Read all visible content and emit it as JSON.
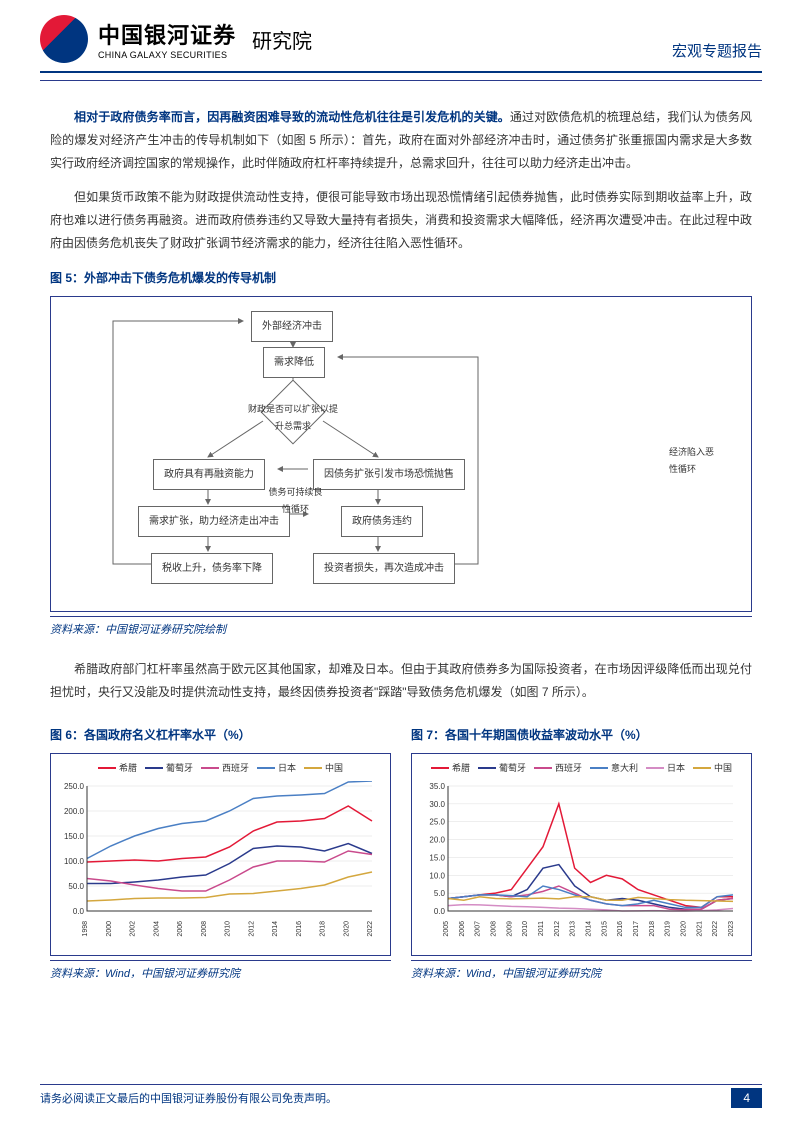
{
  "header": {
    "logoCn": "中国银河证券",
    "logoEn": "CHINA GALAXY SECURITIES",
    "institute": "研究院",
    "reportType": "宏观专题报告"
  },
  "colors": {
    "primary": "#003580",
    "red": "#e31937",
    "text": "#333333",
    "border": "#2a3a8c",
    "grey": "#666666"
  },
  "para1": {
    "lead": "相对于政府债务率而言，因再融资困难导致的流动性危机往往是引发危机的关键。",
    "rest": "通过对欧债危机的梳理总结，我们认为债务风险的爆发对经济产生冲击的传导机制如下（如图 5 所示）：首先，政府在面对外部经济冲击时，通过债务扩张重振国内需求是大多数实行政府经济调控国家的常规操作，此时伴随政府杠杆率持续提升，总需求回升，往往可以助力经济走出冲击。"
  },
  "para2": "但如果货币政策不能为财政提供流动性支持，便很可能导致市场出现恐慌情绪引起债券抛售，此时债券实际到期收益率上升，政府也难以进行债务再融资。进而政府债券违约又导致大量持有者损失，消费和投资需求大幅降低，经济再次遭受冲击。在此过程中政府由因债务危机丧失了财政扩张调节经济需求的能力，经济往往陷入恶性循环。",
  "fig5": {
    "title": "图 5：外部冲击下债务危机爆发的传导机制",
    "source": "资料来源：中国银河证券研究院绘制",
    "nodes": {
      "n1": "外部经济冲击",
      "n2": "需求降低",
      "n3": "财政是否可以扩张以提升总需求",
      "n4a": "政府具有再融资能力",
      "n4b": "因债务扩张引发市场恐慌抛售",
      "n5a": "需求扩张，助力经济走出冲击",
      "n5b": "政府债务违约",
      "n6a": "税收上升，债务率下降",
      "n6b": "投资者损失，再次造成冲击",
      "loopText": "经济陷入恶性循环",
      "sideText": "债务可持续良性循环"
    }
  },
  "para3": "希腊政府部门杠杆率虽然高于欧元区其他国家，却难及日本。但由于其政府债券多为国际投资者，在市场因评级降低而出现兑付担忧时，央行又没能及时提供流动性支持，最终因债券投资者\"踩踏\"导致债务危机爆发（如图 7 所示）。",
  "fig6": {
    "title": "图 6：各国政府名义杠杆率水平（%）",
    "source": "资料来源：Wind，中国银河证券研究院",
    "legend": [
      {
        "name": "希腊",
        "color": "#e31937"
      },
      {
        "name": "葡萄牙",
        "color": "#2a3a8c"
      },
      {
        "name": "西班牙",
        "color": "#c94a8c"
      },
      {
        "name": "日本",
        "color": "#4a7fc4"
      },
      {
        "name": "中国",
        "color": "#d4a73e"
      }
    ],
    "xaxis": [
      "1998",
      "2000",
      "2002",
      "2004",
      "2006",
      "2008",
      "2010",
      "2012",
      "2014",
      "2016",
      "2018",
      "2020",
      "2022"
    ],
    "yaxis": {
      "min": 0,
      "max": 250,
      "step": 50
    },
    "series": {
      "greece": [
        98,
        100,
        102,
        100,
        105,
        108,
        128,
        160,
        178,
        180,
        185,
        210,
        180
      ],
      "portugal": [
        55,
        55,
        58,
        62,
        68,
        72,
        95,
        125,
        130,
        128,
        120,
        135,
        115
      ],
      "spain": [
        65,
        60,
        52,
        45,
        40,
        40,
        62,
        88,
        100,
        100,
        98,
        120,
        113
      ],
      "japan": [
        105,
        130,
        150,
        165,
        175,
        180,
        200,
        225,
        230,
        232,
        235,
        258,
        260
      ],
      "china": [
        20,
        22,
        25,
        26,
        26,
        27,
        34,
        35,
        40,
        45,
        52,
        68,
        78
      ]
    }
  },
  "fig7": {
    "title": "图 7：各国十年期国债收益率波动水平（%）",
    "source": "资料来源：Wind，中国银河证券研究院",
    "legend": [
      {
        "name": "希腊",
        "color": "#e31937"
      },
      {
        "name": "葡萄牙",
        "color": "#2a3a8c"
      },
      {
        "name": "西班牙",
        "color": "#c94a8c"
      },
      {
        "name": "意大利",
        "color": "#4a7fc4"
      },
      {
        "name": "日本",
        "color": "#d48cc4"
      },
      {
        "name": "中国",
        "color": "#d4a73e"
      }
    ],
    "xaxis": [
      "2005",
      "2006",
      "2007",
      "2008",
      "2009",
      "2010",
      "2011",
      "2012",
      "2013",
      "2014",
      "2015",
      "2016",
      "2017",
      "2018",
      "2019",
      "2020",
      "2021",
      "2022",
      "2023"
    ],
    "yaxis": {
      "min": 0,
      "max": 35,
      "step": 5
    },
    "series": {
      "greece": [
        3.5,
        4,
        4.5,
        5,
        6,
        12,
        18,
        30,
        12,
        8,
        10,
        9,
        6,
        4.5,
        3,
        1.5,
        1,
        4,
        4
      ],
      "portugal": [
        3.5,
        4,
        4.5,
        4.5,
        4,
        6,
        12,
        13,
        7,
        4,
        3,
        3.5,
        3,
        2,
        1,
        0.5,
        0.5,
        3,
        3.5
      ],
      "spain": [
        3.5,
        4,
        4.5,
        4.5,
        4,
        4.5,
        5.5,
        7,
        5,
        3,
        2,
        1.5,
        1.5,
        1.5,
        0.5,
        0.3,
        0.5,
        3,
        3.5
      ],
      "italy": [
        3.5,
        4,
        4.5,
        4.5,
        4.3,
        4,
        7,
        6,
        4.5,
        3,
        2,
        1.5,
        2,
        3,
        2,
        1,
        1,
        4,
        4.5
      ],
      "japan": [
        1.5,
        1.8,
        1.7,
        1.5,
        1.3,
        1.2,
        1,
        0.8,
        0.7,
        0.5,
        0.3,
        0,
        0.05,
        0.1,
        0,
        0,
        0.1,
        0.3,
        0.7
      ],
      "china": [
        3.5,
        3,
        4,
        3.5,
        3.4,
        3.5,
        3.6,
        3.4,
        4,
        4,
        3,
        3,
        3.8,
        3.5,
        3.2,
        3,
        2.9,
        2.8,
        2.7
      ]
    }
  },
  "footer": {
    "disclaimer": "请务必阅读正文最后的中国银河证券股份有限公司免责声明。",
    "page": "4"
  }
}
